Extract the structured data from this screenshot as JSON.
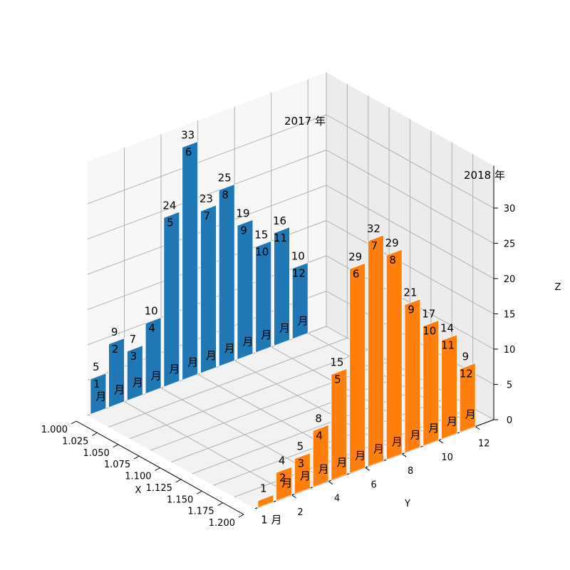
{
  "chart_data": {
    "type": "bar3d",
    "title": "",
    "x_label": "X",
    "y_label": "Y",
    "z_label": "Z",
    "x_ticks": [
      "1.000",
      "1.025",
      "1.050",
      "1.075",
      "1.100",
      "1.125",
      "1.150",
      "1.175",
      "1.200"
    ],
    "y_ticks": [
      "2",
      "4",
      "6",
      "8",
      "10",
      "12"
    ],
    "z_ticks": [
      "0",
      "5",
      "10",
      "15",
      "20",
      "25",
      "30"
    ],
    "x_range": [
      1.0,
      1.2
    ],
    "y_range": [
      0,
      13
    ],
    "z_range": [
      0,
      33
    ],
    "month_unit": "月",
    "year_label_2017": "2017 年",
    "year_label_2018": "2018 年",
    "grid": true,
    "series": [
      {
        "year": "2017",
        "x": 1.0,
        "color": "#1f77b4",
        "months": [
          1,
          2,
          3,
          4,
          5,
          6,
          7,
          8,
          9,
          10,
          11,
          12
        ],
        "values": [
          5,
          9,
          7,
          10,
          24,
          33,
          23,
          25,
          19,
          15,
          16,
          10
        ]
      },
      {
        "year": "2018",
        "x": 1.2,
        "color": "#ff7f0e",
        "months": [
          1,
          2,
          3,
          4,
          5,
          6,
          7,
          8,
          9,
          10,
          11,
          12
        ],
        "values": [
          1,
          4,
          5,
          8,
          15,
          29,
          32,
          29,
          21,
          17,
          14,
          9
        ]
      }
    ]
  }
}
